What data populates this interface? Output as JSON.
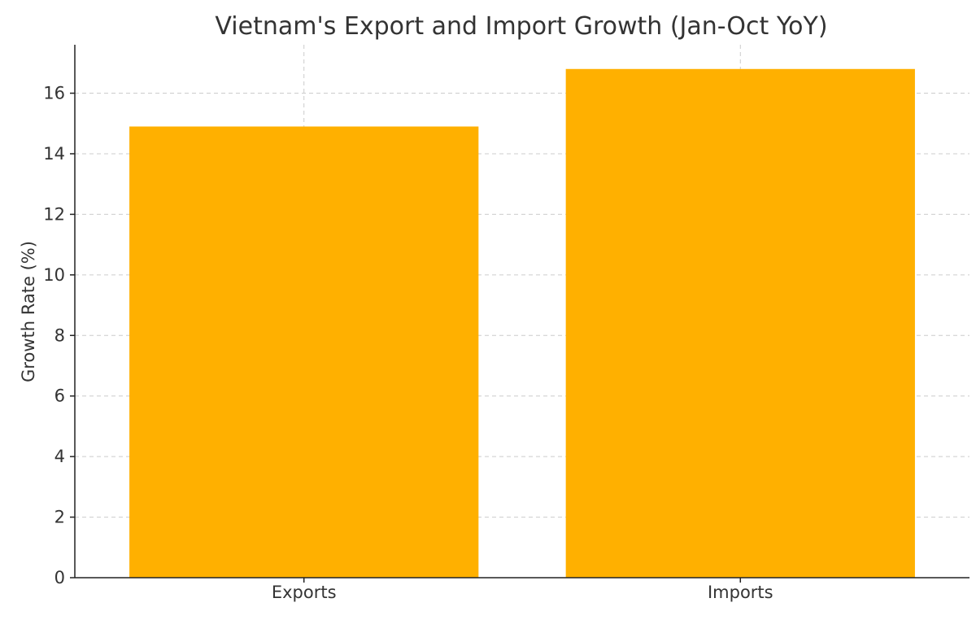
{
  "chart_data": {
    "type": "bar",
    "title": "Vietnam's Export and Import Growth (Jan-Oct YoY)",
    "xlabel": "",
    "ylabel": "Growth Rate (%)",
    "categories": [
      "Exports",
      "Imports"
    ],
    "values": [
      14.9,
      16.8
    ],
    "ylim": [
      0,
      17.6
    ],
    "yticks": [
      0,
      2,
      4,
      6,
      8,
      10,
      12,
      14,
      16
    ],
    "ytick_labels": [
      "0",
      "2",
      "4",
      "6",
      "8",
      "10",
      "12",
      "14",
      "16"
    ],
    "grid": true,
    "legend": "none",
    "bar_color": "#FFB000"
  }
}
